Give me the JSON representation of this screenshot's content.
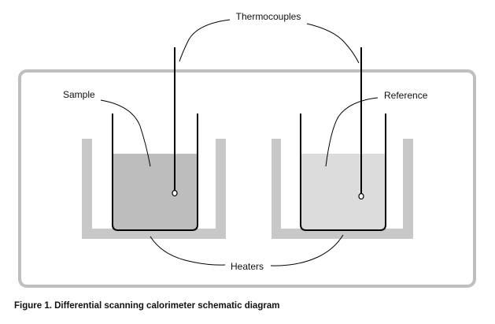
{
  "labels": {
    "thermocouples": "Thermocouples",
    "sample": "Sample",
    "reference": "Reference",
    "heaters": "Heaters"
  },
  "caption": "Figure 1. Differential scanning calorimeter schematic diagram",
  "colors": {
    "enclosure": "#bfbfbf",
    "heater": "#c8c8c8",
    "sample_fill": "#bdbdbd",
    "reference_fill": "#dcdcdc",
    "line": "#000000",
    "background": "#ffffff"
  }
}
